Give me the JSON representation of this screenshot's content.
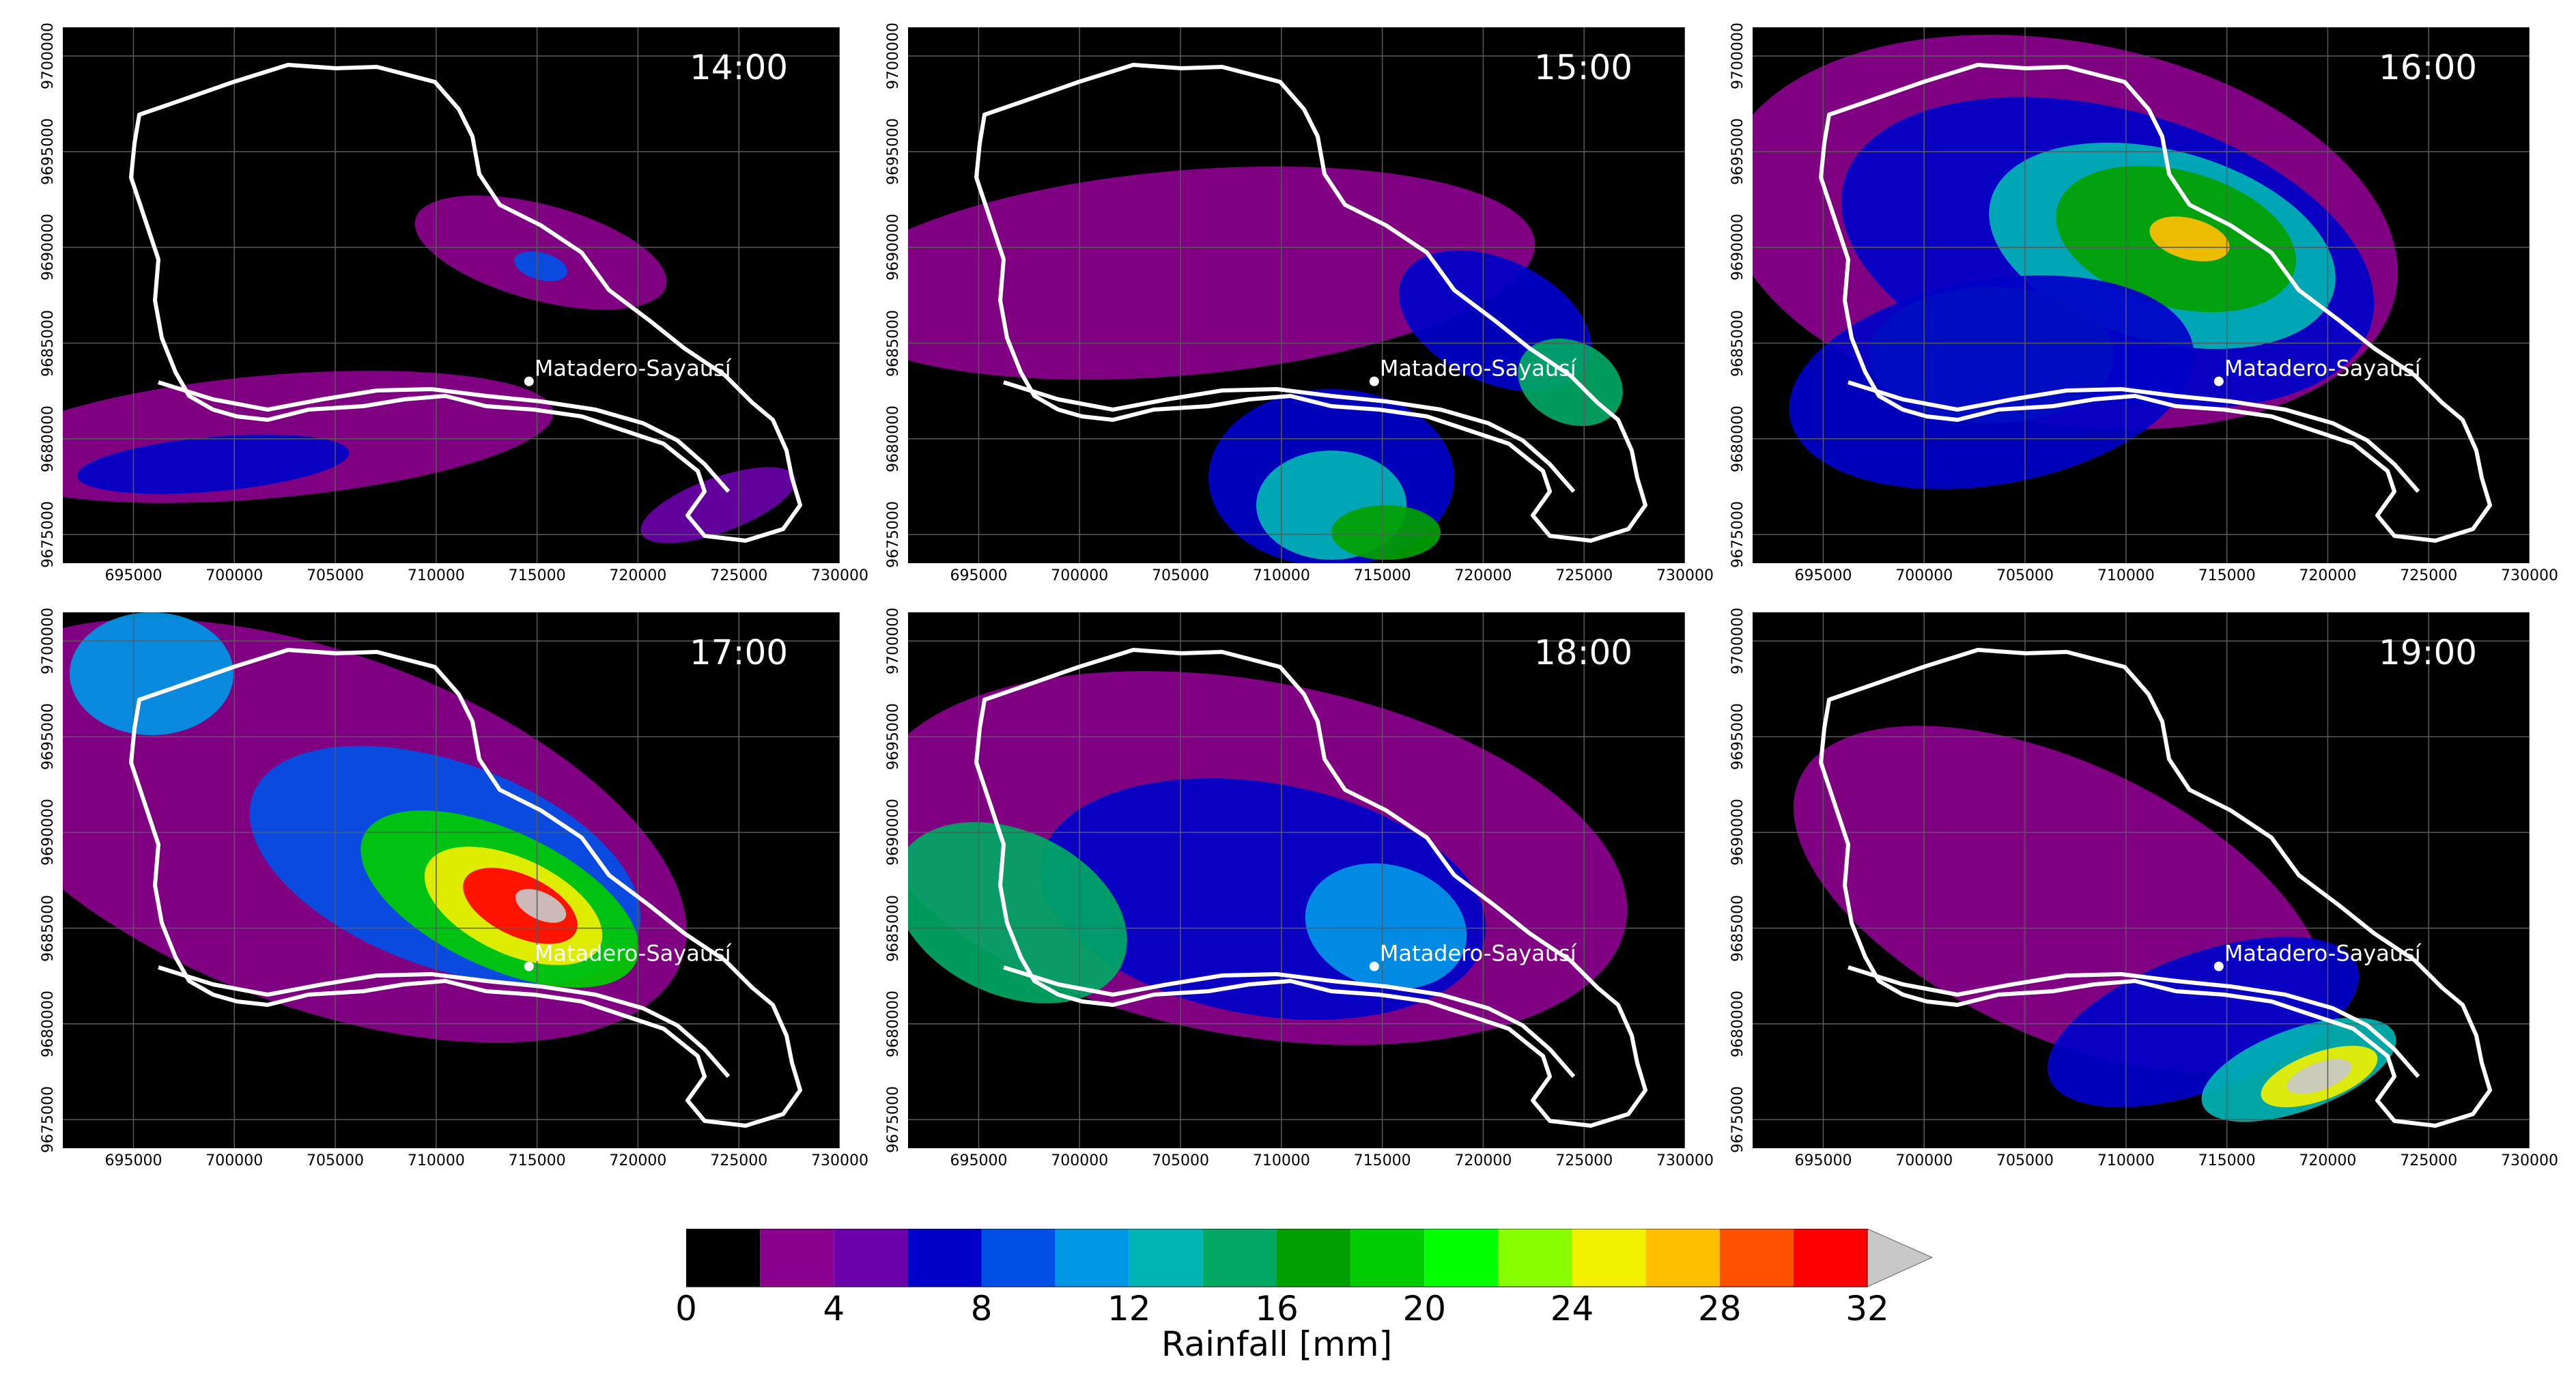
{
  "figure": {
    "panels": [
      {
        "time": "14:00"
      },
      {
        "time": "15:00"
      },
      {
        "time": "16:00"
      },
      {
        "time": "17:00"
      },
      {
        "time": "18:00"
      },
      {
        "time": "19:00"
      }
    ],
    "station_label": "Matadero-Sayausí",
    "x_ticks": [
      "695000",
      "700000",
      "705000",
      "710000",
      "715000",
      "720000",
      "725000",
      "730000"
    ],
    "y_ticks": [
      "9675000",
      "9680000",
      "9685000",
      "9690000",
      "9695000",
      "9700000"
    ],
    "x_range": [
      691500,
      730000
    ],
    "y_range": [
      9673500,
      9701500
    ],
    "station_coords": [
      714600,
      9683000
    ],
    "colors": {
      "background": "#000000",
      "boundary": "#ffffff",
      "grid": "#5a5a5a",
      "overflow": "#c8c8c8"
    }
  },
  "colorbar": {
    "label": "Rainfall [mm]",
    "tick_labels": [
      "0",
      "4",
      "8",
      "12",
      "16",
      "20",
      "24",
      "28",
      "32"
    ],
    "colors": [
      "#000000",
      "#8a008c",
      "#6a00a8",
      "#0000c8",
      "#0050e6",
      "#0096e6",
      "#00b4b4",
      "#00a864",
      "#00a000",
      "#00cc00",
      "#00ff00",
      "#88ff00",
      "#f0f000",
      "#ffbe00",
      "#ff5000",
      "#ff0000"
    ],
    "overflow_color": "#c8c8c8"
  }
}
